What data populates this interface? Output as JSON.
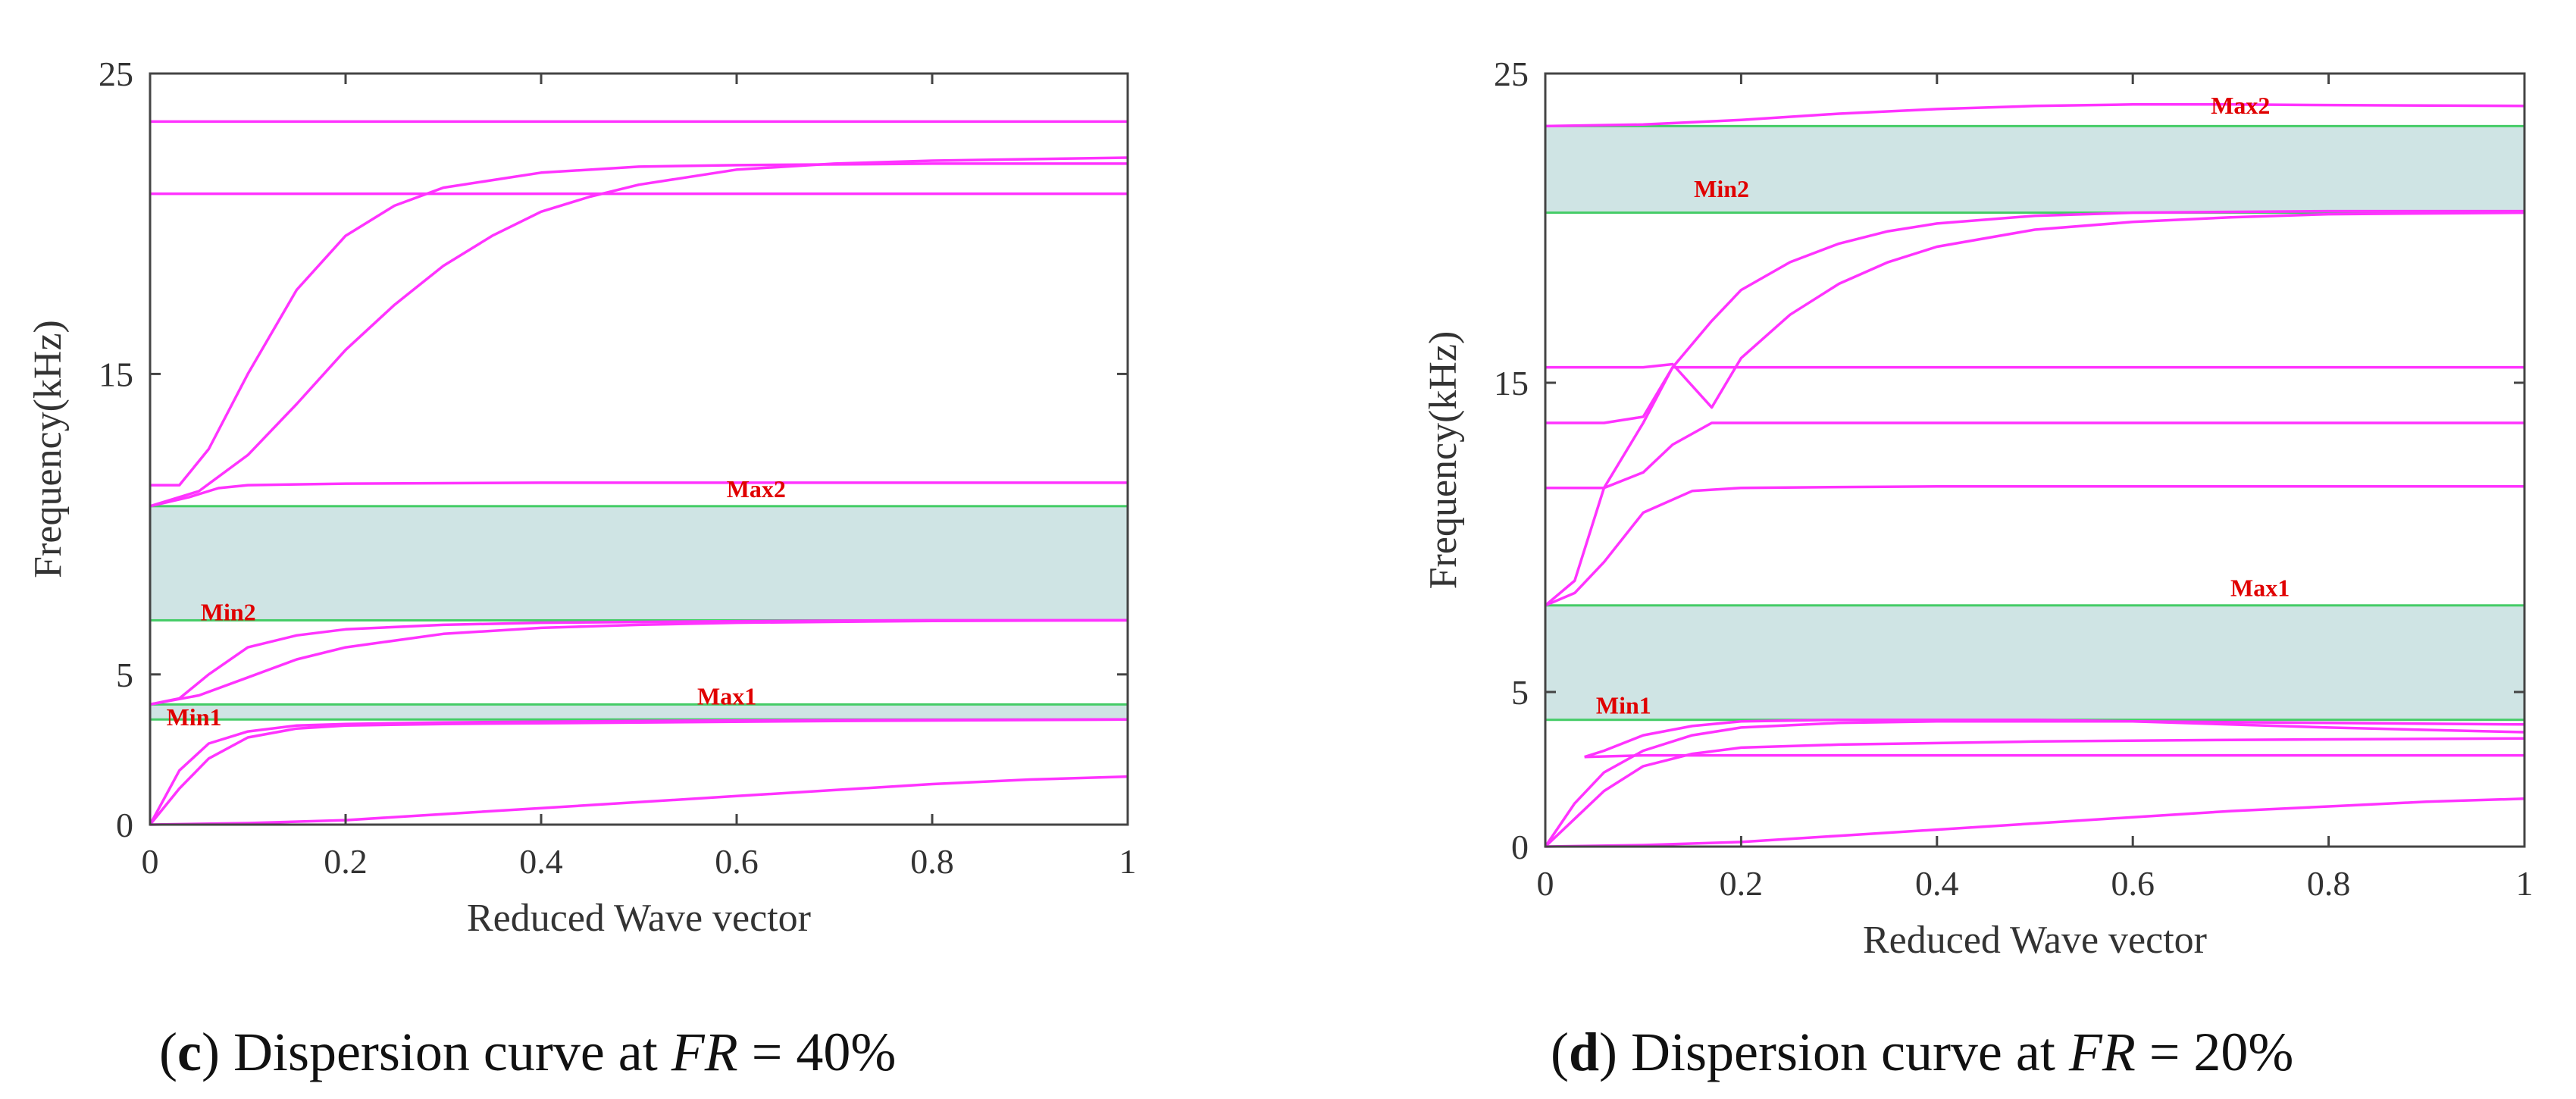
{
  "chart_data": [
    {
      "type": "line",
      "panel": "c",
      "caption": {
        "letter": "c",
        "text": "Dispersion curve at",
        "var": "FR",
        "value": "= 40%",
        "open": "(",
        "close": ")"
      },
      "xlabel": "Reduced Wave vector",
      "ylabel": "Frequency(kHz)",
      "xlim": [
        0,
        1
      ],
      "ylim": [
        0,
        25
      ],
      "xticks": [
        "0",
        "0.2",
        "0.4",
        "0.6",
        "0.8",
        "1"
      ],
      "yticks": [
        "0",
        "5",
        "15",
        "25"
      ],
      "ytick_values": [
        0,
        5,
        15,
        25
      ],
      "series_color": "#ff33ff",
      "band_color": "#cfe4e4",
      "band_edge_color": "#44cc66",
      "bandgaps": [
        {
          "low": 3.5,
          "high": 4.0
        },
        {
          "low": 6.8,
          "high": 10.6
        }
      ],
      "series": [
        {
          "name": "band-1",
          "x": [
            0,
            0.1,
            0.2,
            0.3,
            0.4,
            0.5,
            0.6,
            0.7,
            0.8,
            0.9,
            1.0
          ],
          "y": [
            0,
            0.05,
            0.15,
            0.35,
            0.55,
            0.75,
            0.95,
            1.15,
            1.35,
            1.5,
            1.6
          ]
        },
        {
          "name": "band-2",
          "x": [
            0,
            0.03,
            0.06,
            0.1,
            0.15,
            0.2,
            0.3,
            0.5,
            0.7,
            1.0
          ],
          "y": [
            0,
            1.8,
            2.7,
            3.1,
            3.3,
            3.35,
            3.4,
            3.45,
            3.48,
            3.5
          ]
        },
        {
          "name": "band-3",
          "x": [
            0,
            0.03,
            0.06,
            0.1,
            0.15,
            0.2,
            0.3,
            0.5,
            0.7,
            1.0
          ],
          "y": [
            0,
            1.2,
            2.2,
            2.9,
            3.2,
            3.3,
            3.35,
            3.4,
            3.45,
            3.5
          ]
        },
        {
          "name": "band-4",
          "x": [
            0,
            0.03,
            0.06,
            0.1,
            0.15,
            0.2,
            0.3,
            0.4,
            0.6,
            0.8,
            1.0
          ],
          "y": [
            4.0,
            4.2,
            5.0,
            5.9,
            6.3,
            6.5,
            6.65,
            6.72,
            6.77,
            6.8,
            6.8
          ]
        },
        {
          "name": "band-5",
          "x": [
            0,
            0.05,
            0.1,
            0.15,
            0.2,
            0.3,
            0.4,
            0.5,
            0.6,
            0.8,
            1.0
          ],
          "y": [
            4.0,
            4.3,
            4.9,
            5.5,
            5.9,
            6.35,
            6.55,
            6.65,
            6.72,
            6.78,
            6.8
          ]
        },
        {
          "name": "band-6",
          "x": [
            0,
            0.04,
            0.07,
            0.1,
            0.2,
            0.4,
            0.6,
            0.8,
            1.0
          ],
          "y": [
            10.6,
            10.9,
            11.2,
            11.3,
            11.35,
            11.38,
            11.38,
            11.38,
            11.38
          ]
        },
        {
          "name": "band-7",
          "x": [
            0,
            0.03,
            0.06,
            0.1,
            0.15,
            0.2,
            0.25,
            0.3,
            0.4,
            0.5,
            0.6,
            0.8,
            1.0
          ],
          "y": [
            11.3,
            11.3,
            12.5,
            15.0,
            17.8,
            19.6,
            20.6,
            21.2,
            21.7,
            21.9,
            21.95,
            22.0,
            22.0
          ]
        },
        {
          "name": "band-8",
          "x": [
            0,
            0.05,
            0.1,
            0.15,
            0.2,
            0.25,
            0.3,
            0.35,
            0.4,
            0.45,
            0.5,
            0.6,
            0.7,
            0.8,
            1.0
          ],
          "y": [
            10.6,
            11.1,
            12.3,
            14.0,
            15.8,
            17.3,
            18.6,
            19.6,
            20.4,
            20.9,
            21.3,
            21.8,
            22.0,
            22.1,
            22.2
          ]
        },
        {
          "name": "band-9",
          "x": [
            0,
            1.0
          ],
          "y": [
            21.0,
            21.0
          ]
        },
        {
          "name": "band-10",
          "x": [
            0,
            1.0
          ],
          "y": [
            23.4,
            23.4
          ]
        }
      ],
      "annotations": [
        {
          "text": "Max2",
          "x": 0.62,
          "y": 10.9
        },
        {
          "text": "Min2",
          "x": 0.08,
          "y": 6.8
        },
        {
          "text": "Max1",
          "x": 0.59,
          "y": 4.0
        },
        {
          "text": "Min1",
          "x": 0.045,
          "y": 3.3
        }
      ]
    },
    {
      "type": "line",
      "panel": "d",
      "caption": {
        "letter": "d",
        "text": "Dispersion curve at",
        "var": "FR",
        "value": "= 20%",
        "open": "(",
        "close": ")"
      },
      "xlabel": "Reduced Wave vector",
      "ylabel": "Frequency(kHz)",
      "xlim": [
        0,
        1
      ],
      "ylim": [
        0,
        25
      ],
      "xticks": [
        "0",
        "0.2",
        "0.4",
        "0.6",
        "0.8",
        "1"
      ],
      "yticks": [
        "0",
        "5",
        "15",
        "25"
      ],
      "ytick_values": [
        0,
        5,
        15,
        25
      ],
      "series_color": "#ff33ff",
      "band_color": "#cfe4e4",
      "band_edge_color": "#44cc66",
      "bandgaps": [
        {
          "low": 4.1,
          "high": 7.8
        },
        {
          "low": 20.5,
          "high": 23.3
        }
      ],
      "series": [
        {
          "name": "band-1",
          "x": [
            0,
            0.1,
            0.2,
            0.3,
            0.4,
            0.5,
            0.6,
            0.7,
            0.8,
            0.9,
            1.0
          ],
          "y": [
            0,
            0.05,
            0.15,
            0.35,
            0.55,
            0.75,
            0.95,
            1.15,
            1.3,
            1.45,
            1.55
          ]
        },
        {
          "name": "band-2",
          "x": [
            0,
            0.03,
            0.06,
            0.1,
            0.15,
            0.2,
            0.3,
            0.4,
            0.6,
            0.8,
            1.0
          ],
          "y": [
            0,
            1.4,
            2.4,
            3.1,
            3.6,
            3.85,
            4.0,
            4.05,
            4.05,
            3.85,
            3.7
          ]
        },
        {
          "name": "band-3",
          "x": [
            0,
            0.03,
            0.06,
            0.1,
            0.15,
            0.2,
            0.3,
            0.5,
            0.7,
            1.0
          ],
          "y": [
            0,
            0.9,
            1.8,
            2.6,
            3.0,
            3.2,
            3.3,
            3.4,
            3.45,
            3.5
          ]
        },
        {
          "name": "band-4",
          "x": [
            0.04,
            0.06,
            0.1,
            0.15,
            0.2,
            0.3,
            0.4,
            0.5,
            0.6,
            0.8,
            1.0
          ],
          "y": [
            2.9,
            3.1,
            3.6,
            3.9,
            4.05,
            4.1,
            4.1,
            4.1,
            4.05,
            4.0,
            3.95
          ]
        },
        {
          "name": "band-5",
          "x": [
            0.04,
            0.1,
            0.2,
            0.4,
            0.6,
            0.8,
            1.0
          ],
          "y": [
            2.9,
            2.95,
            2.95,
            2.95,
            2.95,
            2.95,
            2.95
          ]
        },
        {
          "name": "band-6",
          "x": [
            0,
            0.03,
            0.06,
            0.1,
            0.15,
            0.2,
            0.4,
            0.6,
            0.8,
            1.0
          ],
          "y": [
            7.8,
            8.2,
            9.2,
            10.8,
            11.5,
            11.6,
            11.65,
            11.65,
            11.65,
            11.65
          ]
        },
        {
          "name": "band-7",
          "x": [
            0,
            0.03,
            0.06,
            0.1,
            0.13,
            0.17,
            0.2,
            0.4,
            0.6,
            0.8,
            1.0
          ],
          "y": [
            7.8,
            8.6,
            11.6,
            12.1,
            13.0,
            13.7,
            13.7,
            13.7,
            13.7,
            13.7,
            13.7
          ]
        },
        {
          "name": "band-8",
          "x": [
            0,
            0.06,
            0.1,
            0.13,
            0.2,
            0.4,
            0.6,
            0.8,
            1.0
          ],
          "y": [
            11.6,
            11.6,
            13.7,
            15.5,
            15.5,
            15.5,
            15.5,
            15.5,
            15.5
          ]
        },
        {
          "name": "band-9",
          "x": [
            0,
            0.06,
            0.1,
            0.13,
            0.17,
            0.2,
            0.25,
            0.3,
            0.35,
            0.4,
            0.5,
            0.6,
            0.8,
            1.0
          ],
          "y": [
            13.7,
            13.7,
            13.9,
            15.5,
            17.0,
            18.0,
            18.9,
            19.5,
            19.9,
            20.15,
            20.4,
            20.5,
            20.55,
            20.55
          ]
        },
        {
          "name": "band-10",
          "x": [
            0,
            0.1,
            0.13,
            0.17,
            0.2,
            0.25,
            0.3,
            0.35,
            0.4,
            0.5,
            0.6,
            0.7,
            0.8,
            1.0
          ],
          "y": [
            15.5,
            15.5,
            15.6,
            14.2,
            15.8,
            17.2,
            18.2,
            18.9,
            19.4,
            19.95,
            20.2,
            20.35,
            20.45,
            20.5
          ]
        },
        {
          "name": "band-11",
          "x": [
            0,
            0.1,
            0.2,
            0.3,
            0.4,
            0.5,
            0.6,
            0.7,
            0.8,
            1.0
          ],
          "y": [
            23.3,
            23.35,
            23.5,
            23.7,
            23.85,
            23.95,
            24.0,
            24.0,
            23.98,
            23.95
          ]
        }
      ],
      "annotations": [
        {
          "text": "Max2",
          "x": 0.71,
          "y": 23.7
        },
        {
          "text": "Min2",
          "x": 0.18,
          "y": 21.0
        },
        {
          "text": "Max1",
          "x": 0.73,
          "y": 8.1
        },
        {
          "text": "Min1",
          "x": 0.08,
          "y": 4.3
        }
      ]
    }
  ]
}
